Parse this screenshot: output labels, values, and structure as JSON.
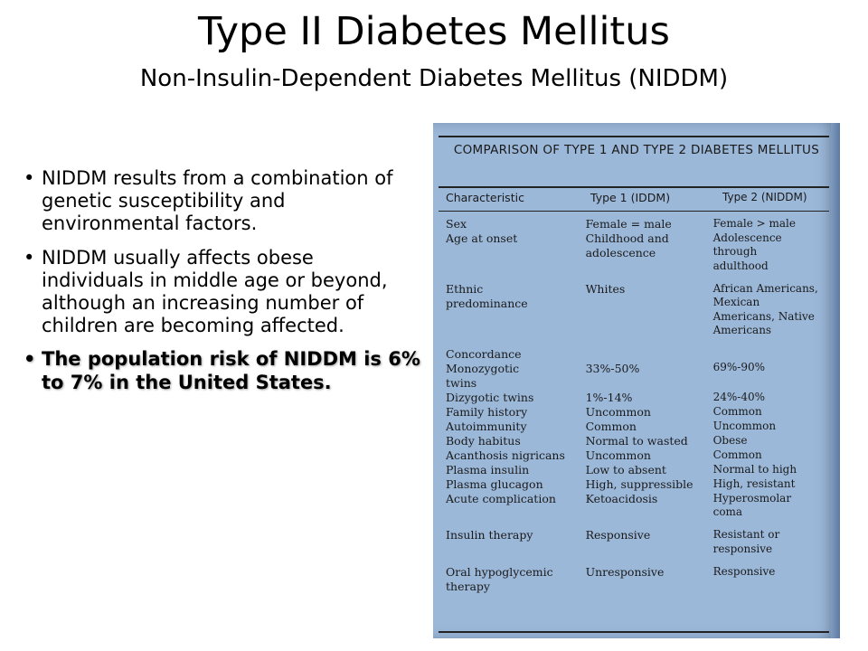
{
  "slide": {
    "title": "Type II Diabetes Mellitus",
    "subtitle": "Non-Insulin-Dependent Diabetes Mellitus (NIDDM)"
  },
  "bullets": [
    "NIDDM results from a combination of genetic susceptibility and environmental factors.",
    "NIDDM usually affects obese individuals in middle age or beyond, although an increasing number of children are becoming affected.",
    "The population risk of NIDDM is 6% to 7% in the United States."
  ],
  "table": {
    "title": "COMPARISON OF TYPE 1 AND TYPE 2 DIABETES MELLITUS",
    "headers": [
      "Characteristic",
      "Type 1 (IDDM)",
      "Type 2 (NIDDM)"
    ],
    "rows": [
      [
        "Sex",
        "Female = male",
        "Female > male"
      ],
      [
        "Age at onset",
        "Childhood and\n   adolescence",
        "Adolescence\n   through\n   adulthood"
      ],
      [
        "Ethnic\n   predominance",
        "Whites",
        "African Americans,\n   Mexican\n   Americans, Native\n   Americans"
      ],
      [
        "Concordance\n   Monozygotic\n      twins",
        "\n33%-50%",
        "\n69%-90%"
      ],
      [
        "   Dizygotic twins",
        "1%-14%",
        "24%-40%"
      ],
      [
        "Family history",
        "Uncommon",
        "Common"
      ],
      [
        "Autoimmunity",
        "Common",
        "Uncommon"
      ],
      [
        "Body habitus",
        "Normal to wasted",
        "Obese"
      ],
      [
        "Acanthosis nigricans",
        "Uncommon",
        "Common"
      ],
      [
        "Plasma insulin",
        "Low to absent",
        "Normal to high"
      ],
      [
        "Plasma glucagon",
        "High, suppressible",
        "High, resistant"
      ],
      [
        "Acute complication",
        "Ketoacidosis",
        "Hyperosmolar\n   coma"
      ],
      [
        "Insulin therapy",
        "Responsive",
        "Resistant or\n   responsive"
      ],
      [
        "Oral hypoglycemic\n   therapy",
        "Unresponsive",
        "Responsive"
      ]
    ]
  },
  "colors": {
    "scan_background": "#9cb8d9"
  }
}
